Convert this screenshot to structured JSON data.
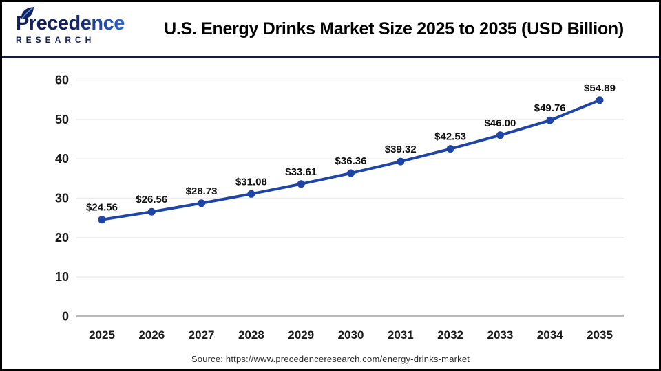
{
  "header": {
    "logo": {
      "brand": "Precedence",
      "sub": "RESEARCH"
    },
    "title": "U.S. Energy Drinks Market Size 2025 to 2035 (USD Billion)"
  },
  "chart_data": {
    "type": "line",
    "title": "U.S. Energy Drinks Market Size 2025 to 2035 (USD Billion)",
    "categories": [
      "2025",
      "2026",
      "2027",
      "2028",
      "2029",
      "2030",
      "2031",
      "2032",
      "2033",
      "2034",
      "2035"
    ],
    "values": [
      24.56,
      26.56,
      28.73,
      31.08,
      33.61,
      36.36,
      39.32,
      42.53,
      46.0,
      49.76,
      54.89
    ],
    "point_labels": [
      "$24.56",
      "$26.56",
      "$28.73",
      "$31.08",
      "$33.61",
      "$36.36",
      "$39.32",
      "$42.53",
      "$46.00",
      "$49.76",
      "$54.89"
    ],
    "xlabel": "",
    "ylabel": "",
    "ylim": [
      0,
      60
    ],
    "yticks": [
      0,
      10,
      20,
      30,
      40,
      50,
      60
    ],
    "grid": true,
    "legend": "none",
    "line_color": "#1e44a6",
    "point_color": "#1e44a6",
    "gridline_color": "#ececec",
    "axis_line_color": "#b9b9b9",
    "label_color": "#111111"
  },
  "footer": {
    "source": "Source: https://www.precedenceresearch.com/energy-drinks-market"
  }
}
